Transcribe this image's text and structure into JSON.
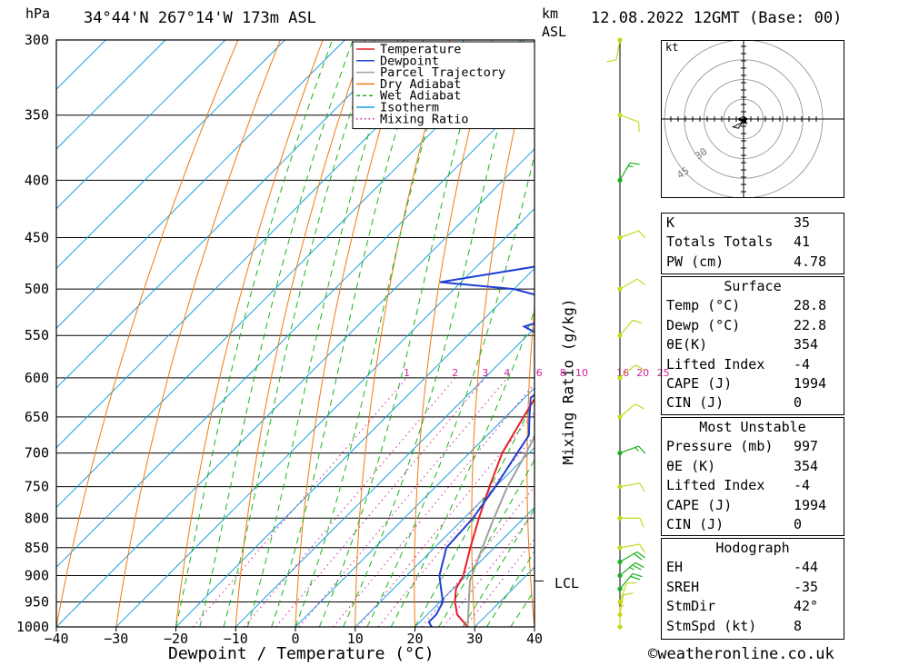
{
  "header": {
    "coords": "34°44'N 267°14'W 173m ASL",
    "datetime": "12.08.2022 12GMT (Base: 00)",
    "hpa_label": "hPa",
    "km_label": "km",
    "asl_label": "ASL"
  },
  "colors": {
    "temperature": "#e8202a",
    "dewpoint": "#1f3fd4",
    "parcel": "#a0a0a0",
    "dry_adiabat": "#f07a10",
    "wet_adiabat": "#19b419",
    "isotherm": "#1aa0e0",
    "mixing_ratio": "#d0209a"
  },
  "chart_data": {
    "type": "line",
    "title": "34°44'N 267°14'W 173m ASL",
    "xlabel": "Dewpoint / Temperature (°C)",
    "ylabel": "hPa",
    "secondary_label": "Mixing Ratio (g/kg)",
    "xlim": [
      -40,
      40
    ],
    "ylim": [
      1000,
      300
    ],
    "x_ticks": [
      "−40",
      "−30",
      "−20",
      "−10",
      "0",
      "10",
      "20",
      "30",
      "40"
    ],
    "pressure_levels": [
      300,
      350,
      400,
      450,
      500,
      550,
      600,
      650,
      700,
      750,
      800,
      850,
      900,
      950,
      1000
    ],
    "mixing_ratio_labels": [
      "1",
      "2",
      "3",
      "4",
      "6",
      "8",
      "10",
      "16",
      "20",
      "25"
    ],
    "mixing_ratio_values": [
      1,
      2,
      3,
      4,
      6,
      8,
      10,
      16,
      20,
      25
    ],
    "legend": [
      "Temperature",
      "Dewpoint",
      "Parcel Trajectory",
      "Dry Adiabat",
      "Wet Adiabat",
      "Isotherm",
      "Mixing Ratio"
    ],
    "legend_position": "top-right",
    "lcl_label": "LCL",
    "lcl_pressure": 910,
    "series": [
      {
        "name": "Temperature",
        "points": [
          [
            1000,
            28.8
          ],
          [
            975,
            25
          ],
          [
            950,
            22.5
          ],
          [
            925,
            20.5
          ],
          [
            900,
            19.5
          ],
          [
            850,
            16
          ],
          [
            800,
            12.5
          ],
          [
            750,
            9
          ],
          [
            700,
            5.5
          ],
          [
            650,
            3
          ],
          [
            600,
            0.5
          ],
          [
            580,
            -1
          ],
          [
            550,
            -3.5
          ],
          [
            525,
            -6
          ],
          [
            500,
            -8.5
          ],
          [
            450,
            -13
          ],
          [
            400,
            -18.5
          ],
          [
            375,
            -22
          ],
          [
            350,
            -25.5
          ],
          [
            325,
            -31
          ],
          [
            300,
            -37
          ]
        ]
      },
      {
        "name": "Dewpoint",
        "points": [
          [
            1000,
            22.8
          ],
          [
            990,
            21.5
          ],
          [
            975,
            21.5
          ],
          [
            950,
            20.5
          ],
          [
            925,
            18
          ],
          [
            900,
            15.5
          ],
          [
            850,
            12
          ],
          [
            800,
            11.5
          ],
          [
            750,
            10
          ],
          [
            700,
            8
          ],
          [
            675,
            7
          ],
          [
            650,
            4
          ],
          [
            625,
            1
          ],
          [
            600,
            2
          ],
          [
            590,
            1
          ],
          [
            575,
            -5
          ],
          [
            560,
            -3.5
          ],
          [
            540,
            -12
          ],
          [
            520,
            -5
          ],
          [
            500,
            -20
          ],
          [
            493,
            -33.5
          ],
          [
            475,
            -18
          ],
          [
            450,
            -21
          ],
          [
            425,
            -24
          ],
          [
            400,
            -23
          ],
          [
            385,
            -24
          ],
          [
            365,
            -31
          ],
          [
            350,
            -35
          ],
          [
            325,
            -40
          ],
          [
            300,
            -42
          ]
        ]
      },
      {
        "name": "Parcel Trajectory",
        "points": [
          [
            1000,
            28.8
          ],
          [
            910,
            21.5
          ],
          [
            850,
            18
          ],
          [
            800,
            15
          ],
          [
            750,
            12
          ],
          [
            700,
            9.5
          ],
          [
            650,
            6.5
          ],
          [
            600,
            3.5
          ],
          [
            550,
            0
          ],
          [
            500,
            -4
          ],
          [
            450,
            -8.5
          ],
          [
            400,
            -14
          ],
          [
            350,
            -21
          ],
          [
            330,
            -24.5
          ]
        ]
      }
    ]
  },
  "wind_barbs": [
    {
      "p": 1000,
      "dir": 180,
      "kt": 8
    },
    {
      "p": 975,
      "dir": 190,
      "kt": 10
    },
    {
      "p": 950,
      "dir": 200,
      "kt": 10
    },
    {
      "p": 925,
      "dir": 220,
      "kt": 20
    },
    {
      "p": 900,
      "dir": 230,
      "kt": 25
    },
    {
      "p": 875,
      "dir": 240,
      "kt": 20
    },
    {
      "p": 850,
      "dir": 260,
      "kt": 10
    },
    {
      "p": 800,
      "dir": 270,
      "kt": 10
    },
    {
      "p": 750,
      "dir": 260,
      "kt": 10
    },
    {
      "p": 700,
      "dir": 250,
      "kt": 15
    },
    {
      "p": 650,
      "dir": 230,
      "kt": 10
    },
    {
      "p": 600,
      "dir": 230,
      "kt": 10
    },
    {
      "p": 550,
      "dir": 220,
      "kt": 10
    },
    {
      "p": 500,
      "dir": 240,
      "kt": 10
    },
    {
      "p": 450,
      "dir": 250,
      "kt": 10
    },
    {
      "p": 400,
      "dir": 210,
      "kt": 15
    },
    {
      "p": 350,
      "dir": 290,
      "kt": 10
    },
    {
      "p": 300,
      "dir": 10,
      "kt": 10
    }
  ],
  "hodograph": {
    "unit_label": "kt",
    "ring_labels": [
      "30",
      "45"
    ],
    "points": [
      [
        2,
        -1
      ],
      [
        -2,
        -3
      ],
      [
        -6,
        -5
      ],
      [
        -8,
        -6
      ],
      [
        -4,
        -7
      ],
      [
        -2,
        -4
      ],
      [
        1,
        -1
      ],
      [
        3,
        0
      ],
      [
        0,
        2
      ],
      [
        -4,
        0
      ],
      [
        -1,
        -1
      ]
    ]
  },
  "indices": [
    {
      "label": "K",
      "value": "35"
    },
    {
      "label": "Totals Totals",
      "value": "41"
    },
    {
      "label": "PW (cm)",
      "value": "4.78"
    }
  ],
  "surface": {
    "title": "Surface",
    "rows": [
      {
        "label": "Temp (°C)",
        "value": "28.8"
      },
      {
        "label": "Dewp (°C)",
        "value": "22.8"
      },
      {
        "label": "θE(K)",
        "value": "354"
      },
      {
        "label": "Lifted Index",
        "value": "-4"
      },
      {
        "label": "CAPE (J)",
        "value": "1994"
      },
      {
        "label": "CIN (J)",
        "value": "0"
      }
    ]
  },
  "most_unstable": {
    "title": "Most Unstable",
    "rows": [
      {
        "label": "Pressure (mb)",
        "value": "997"
      },
      {
        "label": "θE (K)",
        "value": "354"
      },
      {
        "label": "Lifted Index",
        "value": "-4"
      },
      {
        "label": "CAPE (J)",
        "value": "1994"
      },
      {
        "label": "CIN (J)",
        "value": "0"
      }
    ]
  },
  "hodograph_table": {
    "title": "Hodograph",
    "rows": [
      {
        "label": "EH",
        "value": "-44"
      },
      {
        "label": "SREH",
        "value": "-35"
      },
      {
        "label": "StmDir",
        "value": "42°"
      },
      {
        "label": "StmSpd (kt)",
        "value": "8"
      }
    ]
  },
  "footer": {
    "copyright": "©weatheronline.co.uk"
  }
}
